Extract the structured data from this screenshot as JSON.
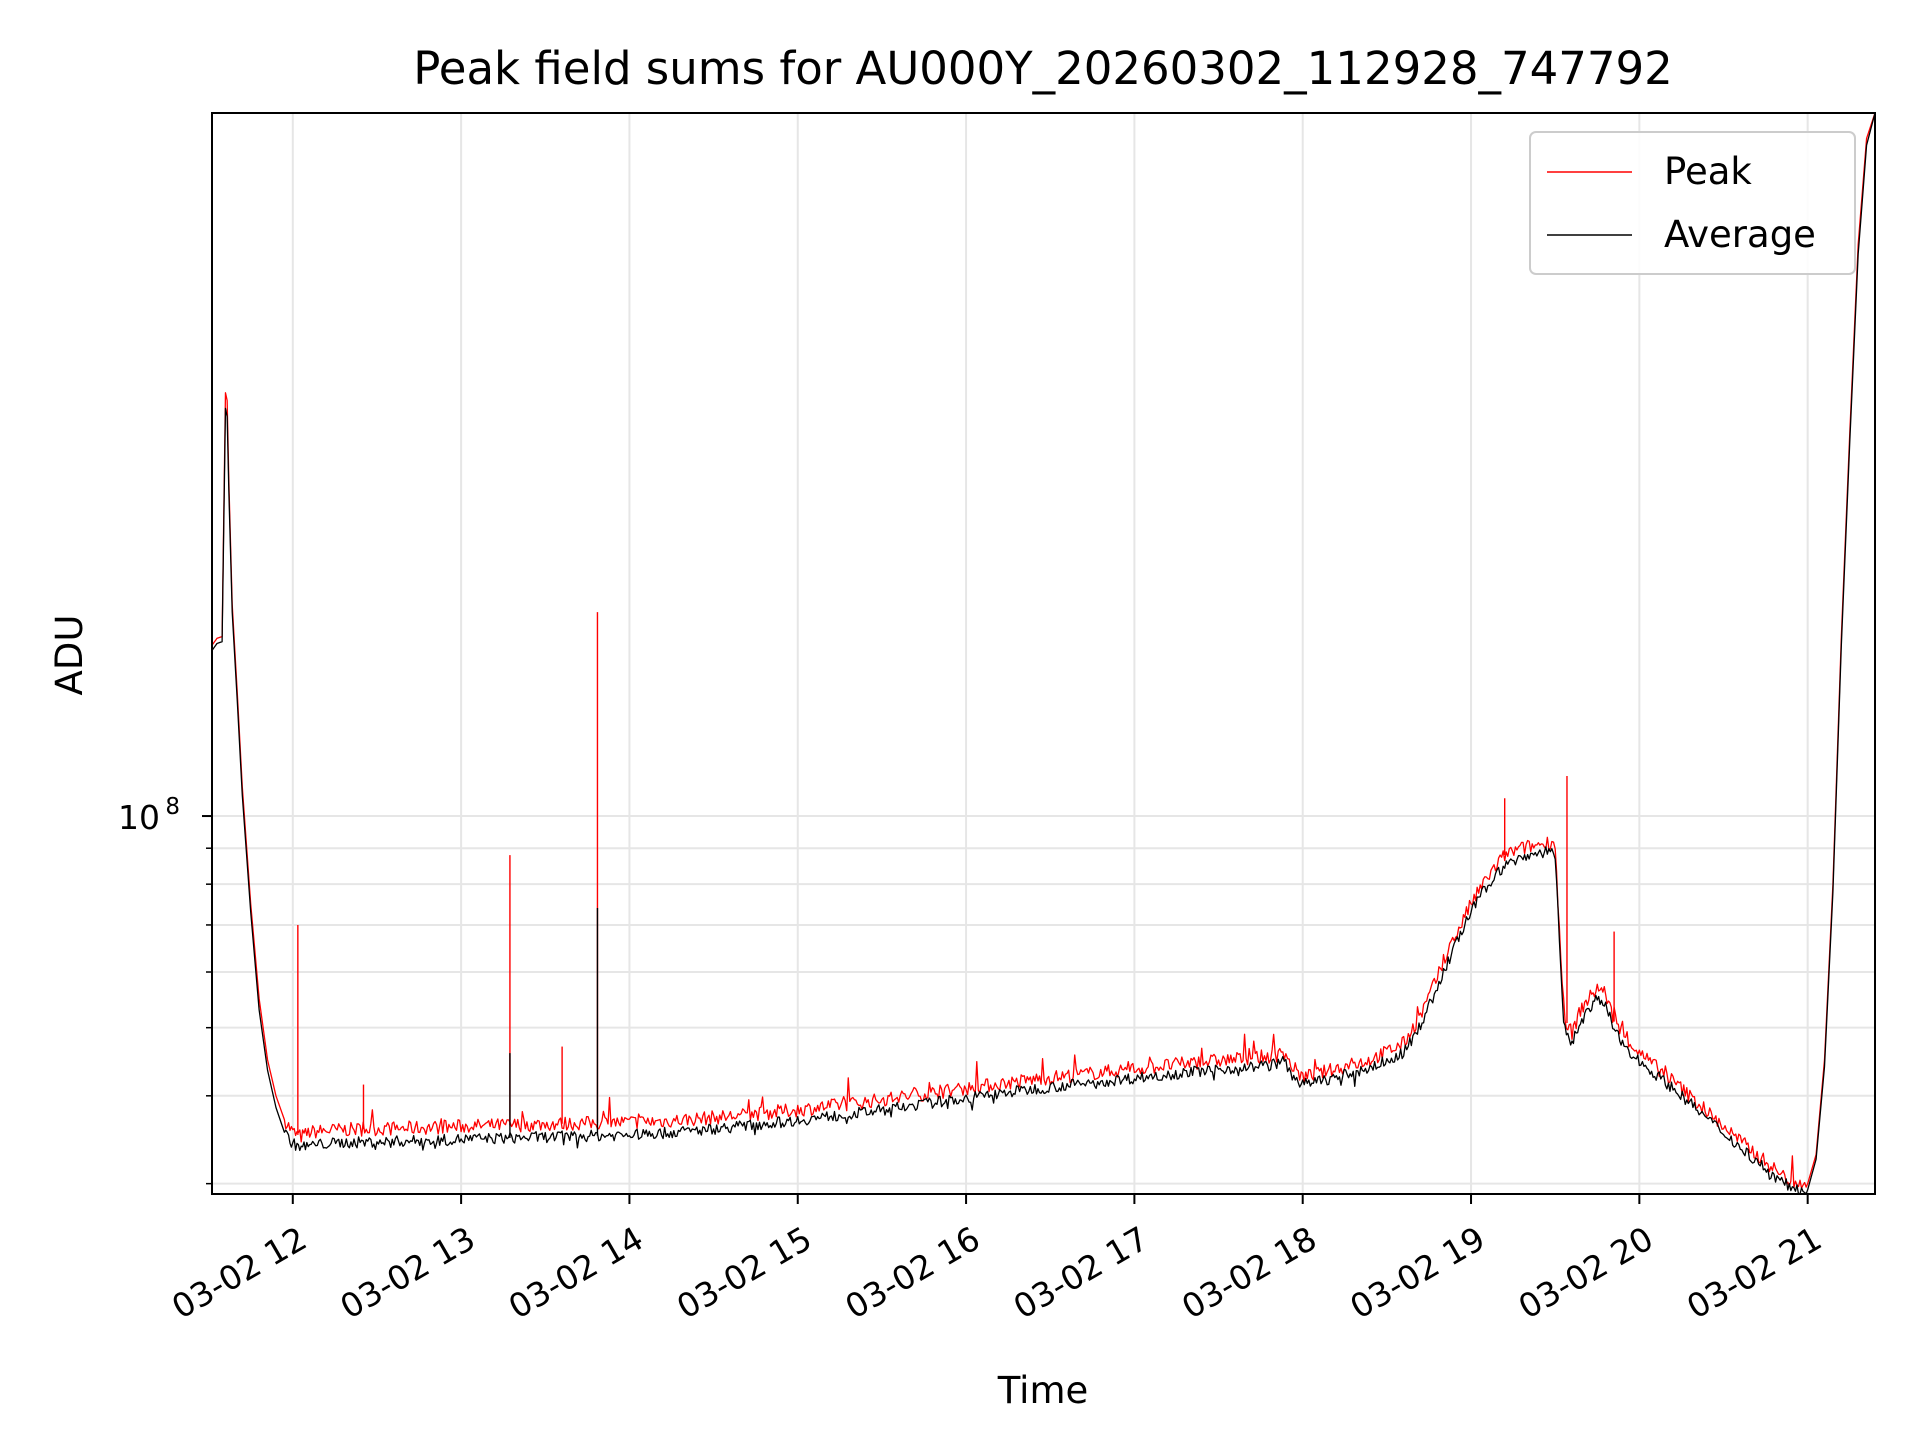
{
  "chart_data": {
    "type": "line",
    "title": "Peak field sums for AU000Y_20260302_112928_747792",
    "xlabel": "Time",
    "ylabel": "ADU",
    "x_unit": "hours of day, 2026-03-02",
    "xlim": [
      11.52,
      21.4
    ],
    "ylim": [
      29000000,
      1000000000
    ],
    "y_scale": "log",
    "y_major_tick": {
      "value": 100000000,
      "label_base": "10",
      "label_exp": "8"
    },
    "y_minor_ticks": [
      30000000,
      40000000,
      50000000,
      60000000,
      70000000,
      80000000,
      90000000
    ],
    "x_ticks": [
      {
        "x": 12,
        "label": "03-02 12"
      },
      {
        "x": 13,
        "label": "03-02 13"
      },
      {
        "x": 14,
        "label": "03-02 14"
      },
      {
        "x": 15,
        "label": "03-02 15"
      },
      {
        "x": 16,
        "label": "03-02 16"
      },
      {
        "x": 17,
        "label": "03-02 17"
      },
      {
        "x": 18,
        "label": "03-02 18"
      },
      {
        "x": 19,
        "label": "03-02 19"
      },
      {
        "x": 20,
        "label": "03-02 20"
      },
      {
        "x": 21,
        "label": "03-02 21"
      }
    ],
    "grid": true,
    "legend_position": "top-right",
    "series": [
      {
        "name": "Peak",
        "color": "#ff0000",
        "x": [
          11.52,
          11.55,
          11.58,
          11.6,
          11.61,
          11.62,
          11.64,
          11.67,
          11.7,
          11.75,
          11.8,
          11.85,
          11.9,
          11.95,
          12.0,
          12.05,
          12.1,
          12.2,
          12.3,
          12.5,
          12.7,
          12.9,
          13.0,
          13.2,
          13.4,
          13.6,
          13.8,
          14.0,
          14.2,
          14.4,
          14.6,
          14.8,
          15.0,
          15.2,
          15.4,
          15.6,
          15.8,
          16.0,
          16.2,
          16.4,
          16.6,
          16.8,
          17.0,
          17.2,
          17.4,
          17.6,
          17.8,
          17.9,
          17.92,
          18.0,
          18.2,
          18.4,
          18.6,
          18.7,
          18.8,
          18.9,
          19.0,
          19.1,
          19.2,
          19.3,
          19.4,
          19.48,
          19.5,
          19.55,
          19.6,
          19.65,
          19.7,
          19.75,
          19.8,
          19.85,
          19.9,
          20.0,
          20.2,
          20.4,
          20.6,
          20.8,
          20.9,
          21.0,
          21.05,
          21.1,
          21.15,
          21.2,
          21.25,
          21.3,
          21.35,
          21.4
        ],
        "y": [
          175000000,
          179000000,
          180000000,
          400000000,
          390000000,
          300000000,
          200000000,
          150000000,
          110000000,
          75000000,
          55000000,
          45000000,
          40000000,
          37000000,
          35500000,
          35000000,
          35500000,
          35700000,
          35800000,
          35900000,
          36000000,
          36100000,
          36200000,
          36300000,
          36400000,
          36500000,
          36600000,
          36700000,
          36800000,
          37100000,
          37400000,
          37800000,
          38200000,
          38700000,
          39200000,
          39800000,
          40400000,
          41000000,
          41600000,
          42200000,
          42700000,
          43200000,
          43700000,
          44200000,
          44700000,
          45100000,
          45500000,
          46000000,
          44500000,
          42500000,
          43700000,
          45000000,
          47500000,
          52000000,
          59000000,
          67000000,
          75000000,
          82000000,
          88000000,
          90000000,
          91000000,
          92000000,
          91000000,
          52000000,
          49000000,
          53000000,
          55000000,
          57000000,
          56000000,
          51000000,
          49000000,
          46000000,
          42000000,
          38000000,
          34500000,
          31500000,
          30200000,
          30000000,
          33000000,
          45000000,
          80000000,
          180000000,
          350000000,
          650000000,
          920000000,
          1000000000
        ]
      },
      {
        "name": "Average",
        "color": "#000000",
        "x": [
          11.52,
          11.55,
          11.58,
          11.6,
          11.61,
          11.62,
          11.64,
          11.67,
          11.7,
          11.75,
          11.8,
          11.85,
          11.9,
          11.95,
          12.0,
          12.05,
          12.1,
          12.2,
          12.3,
          12.5,
          12.7,
          12.9,
          13.0,
          13.2,
          13.4,
          13.6,
          13.8,
          14.0,
          14.2,
          14.4,
          14.6,
          14.8,
          15.0,
          15.2,
          15.4,
          15.6,
          15.8,
          16.0,
          16.2,
          16.4,
          16.6,
          16.8,
          17.0,
          17.2,
          17.4,
          17.6,
          17.8,
          17.9,
          17.92,
          18.0,
          18.2,
          18.4,
          18.6,
          18.7,
          18.8,
          18.9,
          19.0,
          19.1,
          19.2,
          19.3,
          19.4,
          19.48,
          19.5,
          19.55,
          19.6,
          19.65,
          19.7,
          19.75,
          19.8,
          19.85,
          19.9,
          20.0,
          20.2,
          20.4,
          20.6,
          20.8,
          20.9,
          21.0,
          21.05,
          21.1,
          21.15,
          21.2,
          21.25,
          21.3,
          21.35,
          21.4
        ],
        "y": [
          172000000,
          176000000,
          177000000,
          380000000,
          370000000,
          290000000,
          195000000,
          146000000,
          107000000,
          73000000,
          53000000,
          43500000,
          38500000,
          35500000,
          34200000,
          33800000,
          34000000,
          34200000,
          34300000,
          34400000,
          34500000,
          34600000,
          34700000,
          34800000,
          34900000,
          35000000,
          35100000,
          35200000,
          35400000,
          35700000,
          36100000,
          36500000,
          36900000,
          37400000,
          37900000,
          38500000,
          39100000,
          39700000,
          40300000,
          40900000,
          41400000,
          41900000,
          42400000,
          42900000,
          43400000,
          43800000,
          44200000,
          44800000,
          43200000,
          41500000,
          42500000,
          43800000,
          46000000,
          50500000,
          57000000,
          65000000,
          73000000,
          80000000,
          85000000,
          87500000,
          88500000,
          89500000,
          88000000,
          50000000,
          47500000,
          51000000,
          53000000,
          55000000,
          54000000,
          49500000,
          47500000,
          44800000,
          41000000,
          37200000,
          33800000,
          30800000,
          29600000,
          29400000,
          32500000,
          44000000,
          78000000,
          175000000,
          340000000,
          630000000,
          900000000,
          1000000000
        ]
      }
    ],
    "spikes": [
      {
        "series": "Peak",
        "x": 12.03,
        "y": 70000000
      },
      {
        "series": "Peak",
        "x": 12.42,
        "y": 41500000
      },
      {
        "series": "Peak",
        "x": 13.29,
        "y": 88000000
      },
      {
        "series": "Peak",
        "x": 13.6,
        "y": 47000000
      },
      {
        "series": "Peak",
        "x": 13.81,
        "y": 195000000
      },
      {
        "series": "Average",
        "x": 13.29,
        "y": 46000000
      },
      {
        "series": "Average",
        "x": 13.81,
        "y": 74000000
      },
      {
        "series": "Peak",
        "x": 19.2,
        "y": 106000000
      },
      {
        "series": "Peak",
        "x": 19.57,
        "y": 114000000
      },
      {
        "series": "Peak",
        "x": 19.85,
        "y": 68500000
      }
    ]
  }
}
